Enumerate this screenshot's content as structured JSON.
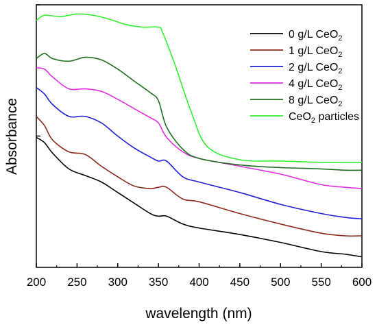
{
  "chart_data": {
    "type": "line",
    "title": "",
    "xlabel": "wavelength (nm)",
    "ylabel": "Absorbance",
    "xlim": [
      200,
      600
    ],
    "ylim": [
      0,
      100
    ],
    "x_ticks": [
      "200",
      "250",
      "300",
      "350",
      "400",
      "450",
      "500",
      "550",
      "600"
    ],
    "y_ticks_labeled": false,
    "legend_position": "top-right",
    "series": [
      {
        "name": "0 g/L CeO2",
        "name_parts": [
          "0 g/L CeO",
          "2",
          ""
        ],
        "color": "#000000",
        "x": [
          200,
          210,
          220,
          240,
          260,
          280,
          300,
          320,
          340,
          350,
          360,
          380,
          400,
          450,
          500,
          550,
          580,
          600
        ],
        "y": [
          49.5,
          47.5,
          43.5,
          37.5,
          35.0,
          32.5,
          28.5,
          24.5,
          20.5,
          19.5,
          19.5,
          16.5,
          15.0,
          12.5,
          9.5,
          6.0,
          5.0,
          4.0
        ]
      },
      {
        "name": "1 g/L CeO2",
        "name_parts": [
          "1 g/L CeO",
          "2",
          ""
        ],
        "color": "#8b2a1a",
        "x": [
          200,
          210,
          220,
          240,
          260,
          280,
          300,
          320,
          340,
          350,
          360,
          380,
          400,
          450,
          500,
          550,
          580,
          600
        ],
        "y": [
          57.5,
          54.0,
          48.5,
          44.0,
          43.0,
          38.5,
          34.5,
          31.0,
          30.0,
          30.5,
          30.5,
          26.0,
          25.0,
          20.5,
          16.5,
          13.0,
          12.0,
          12.0
        ]
      },
      {
        "name": "2 g/L CeO2",
        "name_parts": [
          "2 g/L CeO",
          "2",
          ""
        ],
        "color": "#1f1fd6",
        "x": [
          200,
          210,
          220,
          240,
          260,
          280,
          300,
          320,
          340,
          350,
          360,
          380,
          400,
          450,
          500,
          550,
          580,
          600
        ],
        "y": [
          68.5,
          66.0,
          62.0,
          57.5,
          57.5,
          55.0,
          50.0,
          45.5,
          42.0,
          40.5,
          40.5,
          34.5,
          32.5,
          28.5,
          24.0,
          20.5,
          19.0,
          18.5
        ]
      },
      {
        "name": "4 g/L CeO2",
        "name_parts": [
          "4 g/L CeO",
          "2",
          ""
        ],
        "color": "#e02ee0",
        "x": [
          200,
          210,
          220,
          240,
          260,
          280,
          300,
          320,
          340,
          350,
          360,
          380,
          400,
          450,
          500,
          550,
          580,
          600
        ],
        "y": [
          76.0,
          75.5,
          72.5,
          68.0,
          68.0,
          67.0,
          64.0,
          60.5,
          57.0,
          55.0,
          49.5,
          44.0,
          41.5,
          38.5,
          35.5,
          31.5,
          30.5,
          30.0
        ]
      },
      {
        "name": "8 g/L CeO2",
        "name_parts": [
          "8 g/L CeO",
          "2",
          ""
        ],
        "color": "#1e6e1e",
        "x": [
          200,
          210,
          220,
          240,
          260,
          280,
          300,
          320,
          340,
          350,
          360,
          380,
          400,
          450,
          500,
          550,
          580,
          600
        ],
        "y": [
          79.5,
          81.5,
          79.5,
          78.5,
          80.0,
          79.0,
          75.5,
          71.0,
          66.5,
          63.5,
          53.5,
          45.0,
          41.5,
          39.0,
          38.0,
          37.5,
          37.0,
          37.0
        ]
      },
      {
        "name": "CeO2 particles",
        "name_parts": [
          "CeO",
          "2",
          " particles"
        ],
        "color": "#33f033",
        "x": [
          200,
          210,
          230,
          250,
          270,
          290,
          310,
          330,
          350,
          355,
          370,
          390,
          410,
          450,
          500,
          550,
          580,
          600
        ],
        "y": [
          94.0,
          96.0,
          95.5,
          96.5,
          96.0,
          94.5,
          92.5,
          91.5,
          91.5,
          89.5,
          77.5,
          59.5,
          46.0,
          41.0,
          40.5,
          40.0,
          40.0,
          40.0
        ]
      }
    ]
  }
}
